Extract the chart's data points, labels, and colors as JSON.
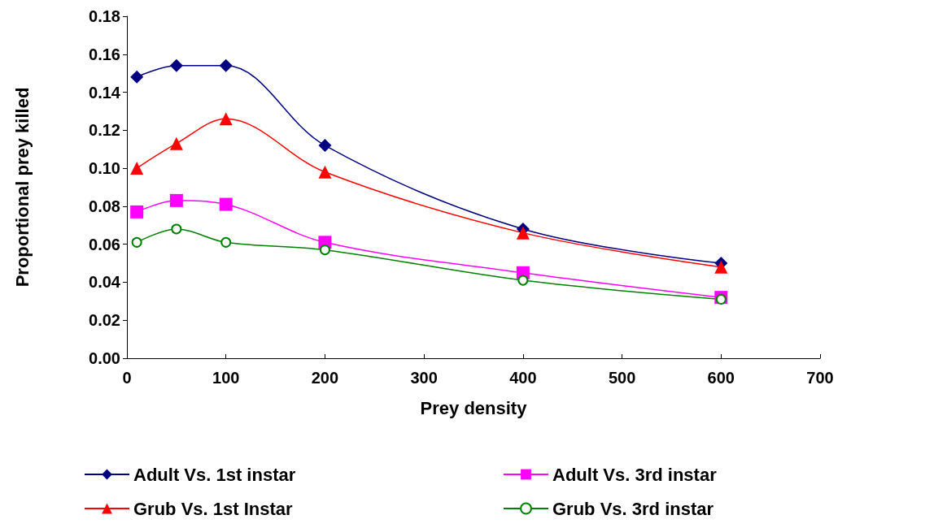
{
  "chart_data": {
    "type": "line",
    "xlabel": "Prey density",
    "ylabel": "Proportional prey killed",
    "x": [
      10,
      50,
      100,
      200,
      400,
      600
    ],
    "series": [
      {
        "name": "Adult Vs. 1st instar",
        "color": "#000080",
        "marker": "diamond",
        "values": [
          0.148,
          0.154,
          0.154,
          0.112,
          0.068,
          0.05
        ]
      },
      {
        "name": "Adult Vs. 3rd instar",
        "color": "#ff00ff",
        "marker": "square",
        "values": [
          0.077,
          0.083,
          0.081,
          0.061,
          0.045,
          0.032
        ]
      },
      {
        "name": "Grub Vs. 1st Instar",
        "color": "#ff0000",
        "marker": "triangle",
        "values": [
          0.1,
          0.113,
          0.126,
          0.098,
          0.066,
          0.048
        ]
      },
      {
        "name": "Grub Vs. 3rd instar",
        "color": "#008000",
        "marker": "circle",
        "values": [
          0.061,
          0.068,
          0.061,
          0.057,
          0.041,
          0.031
        ]
      }
    ],
    "xlim": [
      0,
      700
    ],
    "xticks": [
      0,
      100,
      200,
      300,
      400,
      500,
      600,
      700
    ],
    "ylim": [
      0,
      0.18
    ],
    "yticks": [
      {
        "value": 0,
        "label": "0.00"
      },
      {
        "value": 0.02,
        "label": "0.02"
      },
      {
        "value": 0.04,
        "label": "0.04"
      },
      {
        "value": 0.06,
        "label": "0.06"
      },
      {
        "value": 0.08,
        "label": "0.08"
      },
      {
        "value": 0.1,
        "label": "0.10"
      },
      {
        "value": 0.12,
        "label": "0.12"
      },
      {
        "value": 0.14,
        "label": "0.14"
      },
      {
        "value": 0.16,
        "label": "0.16"
      },
      {
        "value": 0.18,
        "label": "0.18"
      }
    ],
    "grid": false,
    "legend": "bottom",
    "line_style": "solid"
  }
}
